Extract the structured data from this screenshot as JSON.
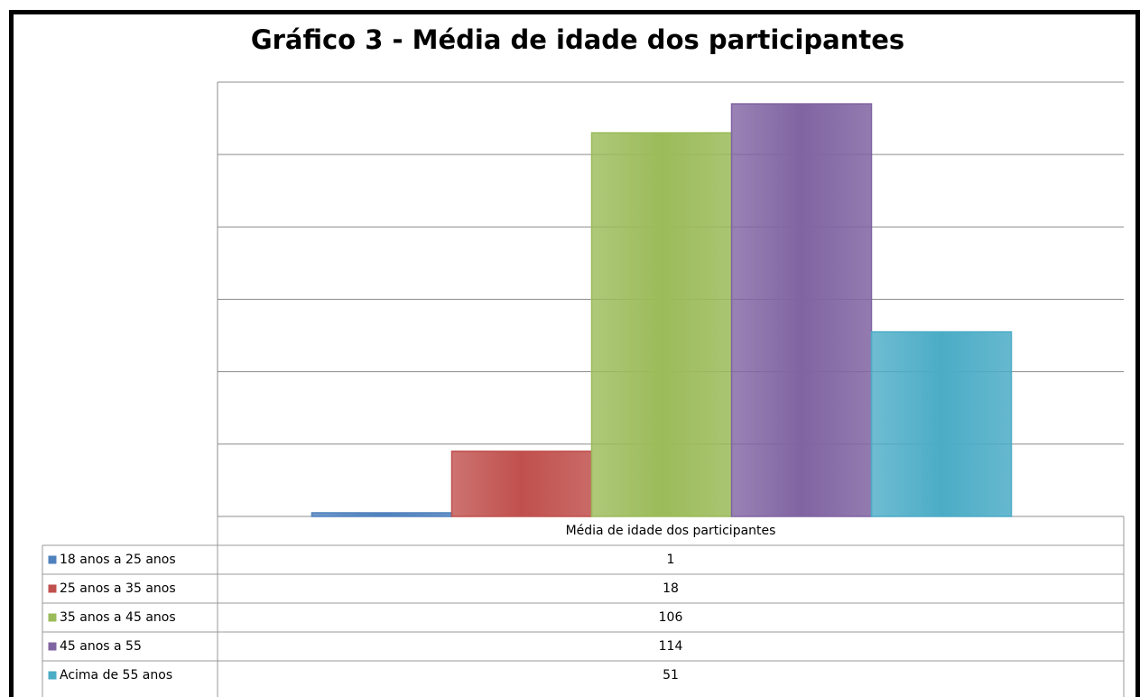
{
  "chart_data": {
    "type": "bar",
    "title": "Gráfico 3 - Média de idade dos participantes",
    "categories": [
      "Média de idade dos participantes"
    ],
    "series": [
      {
        "name": "18 anos a 25 anos",
        "color": "#4f81bd",
        "values": [
          1
        ]
      },
      {
        "name": "25 anos a 35 anos",
        "color": "#c0504d",
        "values": [
          18
        ]
      },
      {
        "name": "35 anos a 45 anos",
        "color": "#9bbb59",
        "values": [
          106
        ]
      },
      {
        "name": "45 anos a 55",
        "color": "#8064a2",
        "values": [
          114
        ]
      },
      {
        "name": "Acima de 55 anos",
        "color": "#4bacc6",
        "values": [
          51
        ]
      }
    ],
    "ylim": [
      0,
      120
    ],
    "yticks": [
      0,
      20,
      40,
      60,
      80,
      100,
      120
    ],
    "grid": true
  }
}
